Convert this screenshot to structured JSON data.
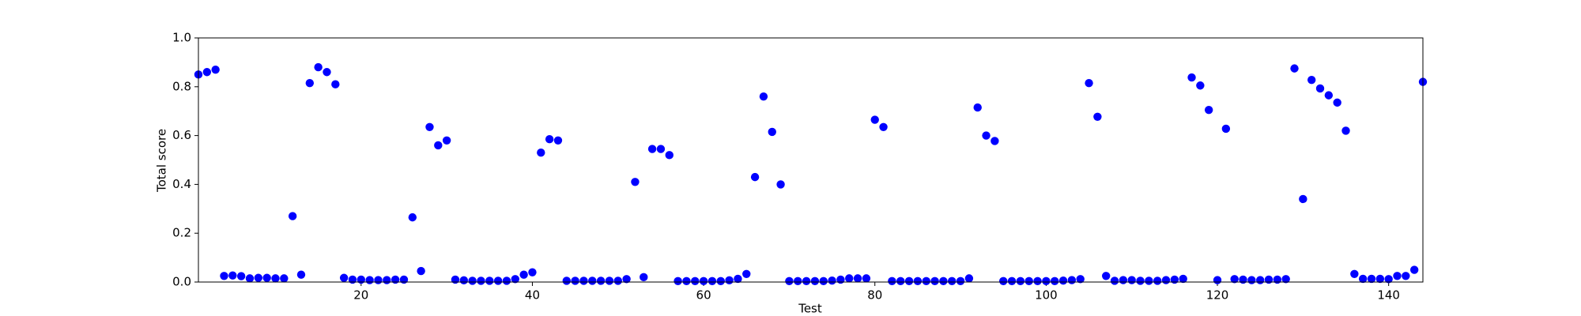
{
  "chart_data": {
    "type": "scatter",
    "xlabel": "Test",
    "ylabel": "Total score",
    "x": [
      1,
      2,
      3,
      4,
      5,
      6,
      7,
      8,
      9,
      10,
      11,
      12,
      13,
      14,
      15,
      16,
      17,
      18,
      19,
      20,
      21,
      22,
      23,
      24,
      25,
      26,
      27,
      28,
      29,
      30,
      31,
      32,
      33,
      34,
      35,
      36,
      37,
      38,
      39,
      40,
      41,
      42,
      43,
      44,
      45,
      46,
      47,
      48,
      49,
      50,
      51,
      52,
      53,
      54,
      55,
      56,
      57,
      58,
      59,
      60,
      61,
      62,
      63,
      64,
      65,
      66,
      67,
      68,
      69,
      70,
      71,
      72,
      73,
      74,
      75,
      76,
      77,
      78,
      79,
      80,
      81,
      82,
      83,
      84,
      85,
      86,
      87,
      88,
      89,
      90,
      91,
      92,
      93,
      94,
      95,
      96,
      97,
      98,
      99,
      100,
      101,
      102,
      103,
      104,
      105,
      106,
      107,
      108,
      109,
      110,
      111,
      112,
      113,
      114,
      115,
      116,
      117,
      118,
      119,
      120,
      121,
      122,
      123,
      124,
      125,
      126,
      127,
      128,
      129,
      130,
      131,
      132,
      133,
      134,
      135,
      136,
      137,
      138,
      139,
      140,
      141,
      142,
      143,
      144
    ],
    "values": [
      0.85,
      0.86,
      0.87,
      0.025,
      0.027,
      0.024,
      0.015,
      0.017,
      0.017,
      0.015,
      0.015,
      0.27,
      0.03,
      0.815,
      0.88,
      0.86,
      0.81,
      0.017,
      0.01,
      0.01,
      0.008,
      0.008,
      0.008,
      0.01,
      0.01,
      0.265,
      0.045,
      0.635,
      0.56,
      0.58,
      0.01,
      0.007,
      0.005,
      0.005,
      0.005,
      0.005,
      0.005,
      0.012,
      0.03,
      0.04,
      0.53,
      0.585,
      0.58,
      0.005,
      0.005,
      0.005,
      0.005,
      0.005,
      0.005,
      0.005,
      0.012,
      0.41,
      0.02,
      0.545,
      0.545,
      0.52,
      0.004,
      0.004,
      0.004,
      0.004,
      0.004,
      0.004,
      0.007,
      0.013,
      0.033,
      0.43,
      0.76,
      0.615,
      0.4,
      0.004,
      0.004,
      0.004,
      0.004,
      0.004,
      0.006,
      0.01,
      0.015,
      0.015,
      0.015,
      0.665,
      0.635,
      0.004,
      0.004,
      0.004,
      0.004,
      0.004,
      0.004,
      0.004,
      0.004,
      0.004,
      0.015,
      0.715,
      0.6,
      0.578,
      0.004,
      0.004,
      0.004,
      0.004,
      0.004,
      0.004,
      0.004,
      0.006,
      0.008,
      0.012,
      0.815,
      0.677,
      0.025,
      0.005,
      0.008,
      0.008,
      0.005,
      0.005,
      0.005,
      0.008,
      0.01,
      0.013,
      0.838,
      0.805,
      0.705,
      0.008,
      0.628,
      0.012,
      0.01,
      0.008,
      0.008,
      0.01,
      0.01,
      0.012,
      0.875,
      0.34,
      0.828,
      0.793,
      0.765,
      0.735,
      0.62,
      0.033,
      0.013,
      0.013,
      0.013,
      0.012,
      0.025,
      0.025,
      0.05,
      0.82
    ],
    "color": "#0000ff",
    "xlim": [
      1,
      144
    ],
    "xticks": [
      20,
      40,
      60,
      80,
      100,
      120,
      140
    ],
    "ylim": [
      0,
      1
    ],
    "yticks": [
      {
        "value": 0,
        "label": "0.0"
      },
      0.2,
      0.4,
      0.6,
      0.8,
      {
        "value": 1,
        "label": "1.0"
      }
    ],
    "grid": false
  }
}
